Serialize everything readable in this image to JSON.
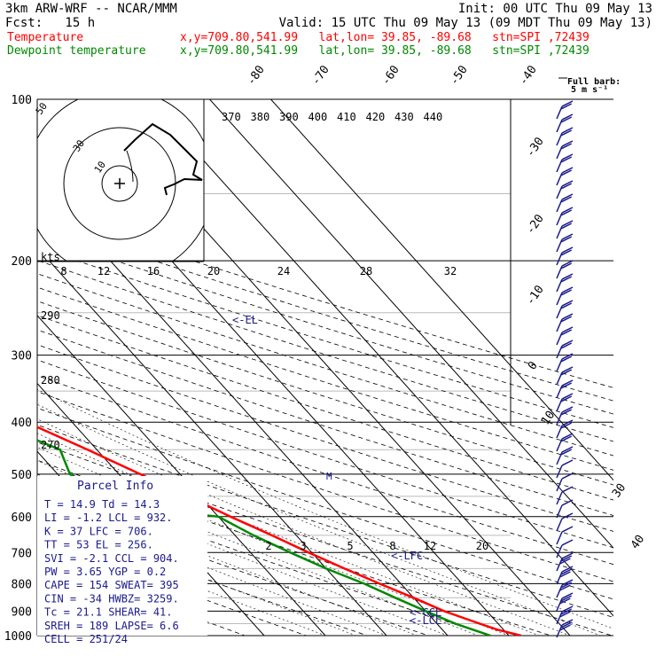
{
  "header": {
    "title": "3km ARW-WRF -- NCAR/MMM",
    "init": "Init: 00 UTC Thu 09 May 13",
    "fcst": "Fcst:   15 h",
    "valid": "Valid: 15 UTC Thu 09 May 13 (09 MDT Thu 09 May 13)",
    "temp_label": "Temperature",
    "dew_label": "Dewpoint temperature",
    "temp_info": "x,y=709.80,541.99   lat,lon= 39.85, -89.68   stn=SPI ,72439",
    "dew_info": "x,y=709.80,541.99   lat,lon= 39.85, -89.68   stn=SPI ,72439",
    "temp_color": "#ff0000",
    "dew_color": "#008800"
  },
  "barb_label": "Full barb:",
  "barb_unit": "5 m s⁻¹",
  "parcel_info": {
    "title": "Parcel Info",
    "lines": [
      "T  =   14.9 Td =  14.3",
      "LI =   -1.2 LCL =  932.",
      "K  =    37 LFC =  706.",
      "TT =    53 EL  =  256.",
      "SVI =  -2.1 CCL =  904.",
      "PW =   3.65 YGP =   0.2",
      "CAPE =  154 SWEAT=  395",
      "CIN =   -34 HWBZ= 3259.",
      "Tc =   21.1 SHEAR=  41.",
      "SREH =  189 LAPSE=  6.6",
      "CELL = 251/24"
    ],
    "color": "#1a1a8c"
  },
  "level_marks": {
    "el": "<-EL",
    "m": "M",
    "lfc": "<-LFC",
    "ccl": "<-CCL",
    "lcl": "<-LCL"
  },
  "hodograph": {
    "speed_units": "kts",
    "ring_labels": [
      "10",
      "30",
      "50"
    ]
  },
  "chart_data": {
    "type": "skew-t",
    "pressure_ticks": [
      100,
      200,
      300,
      400,
      500,
      600,
      700,
      800,
      900,
      1000
    ],
    "isotherm_labels_left_top": [
      "-80",
      "-70",
      "-60",
      "-50",
      "-40"
    ],
    "isotherm_labels_right": [
      "-30",
      "-20",
      "-10",
      "0",
      "10",
      "30",
      "40"
    ],
    "theta_e_labels": [
      "370",
      "380",
      "390",
      "400",
      "410",
      "420",
      "430",
      "440"
    ],
    "mixing_ratio_labels": [
      "8",
      "12",
      "16",
      "20",
      "24",
      "28",
      "32"
    ],
    "mixing_ratio_low_labels": [
      "2",
      "3",
      "5",
      "8",
      "12",
      "20"
    ],
    "theta_labels": [
      "290",
      "280",
      "270"
    ],
    "temperature_profile": [
      {
        "p": 1000,
        "t": 22.0
      },
      {
        "p": 975,
        "t": 19.0
      },
      {
        "p": 950,
        "t": 17.0
      },
      {
        "p": 925,
        "t": 15.0
      },
      {
        "p": 900,
        "t": 13.0
      },
      {
        "p": 850,
        "t": 10.0
      },
      {
        "p": 800,
        "t": 6.5
      },
      {
        "p": 750,
        "t": 3.0
      },
      {
        "p": 700,
        "t": -0.5
      },
      {
        "p": 650,
        "t": -4.0
      },
      {
        "p": 600,
        "t": -8.0
      },
      {
        "p": 550,
        "t": -12.0
      },
      {
        "p": 500,
        "t": -16.5
      },
      {
        "p": 450,
        "t": -21.5
      },
      {
        "p": 400,
        "t": -27.5
      },
      {
        "p": 350,
        "t": -34.5
      },
      {
        "p": 300,
        "t": -42.5
      },
      {
        "p": 250,
        "t": -52.0
      },
      {
        "p": 200,
        "t": -60.0
      },
      {
        "p": 175,
        "t": -62.0
      },
      {
        "p": 150,
        "t": -61.0
      },
      {
        "p": 125,
        "t": -57.5
      },
      {
        "p": 100,
        "t": -62.0
      }
    ],
    "dewpoint_profile": [
      {
        "p": 1000,
        "t": 17.0
      },
      {
        "p": 975,
        "t": 15.0
      },
      {
        "p": 950,
        "t": 13.0
      },
      {
        "p": 925,
        "t": 11.5
      },
      {
        "p": 900,
        "t": 10.0
      },
      {
        "p": 850,
        "t": 7.0
      },
      {
        "p": 800,
        "t": 4.0
      },
      {
        "p": 750,
        "t": 0.0
      },
      {
        "p": 700,
        "t": -3.5
      },
      {
        "p": 650,
        "t": -7.0
      },
      {
        "p": 600,
        "t": -10.0
      },
      {
        "p": 575,
        "t": -24.0
      },
      {
        "p": 550,
        "t": -24.5
      },
      {
        "p": 500,
        "t": -28.0
      },
      {
        "p": 450,
        "t": -26.0
      },
      {
        "p": 400,
        "t": -33.0
      },
      {
        "p": 350,
        "t": -40.0
      },
      {
        "p": 300,
        "t": -50.0
      },
      {
        "p": 250,
        "t": -62.0
      },
      {
        "p": 200,
        "t": -72.0
      },
      {
        "p": 175,
        "t": -73.0
      },
      {
        "p": 150,
        "t": -77.0
      },
      {
        "p": 125,
        "t": -82.0
      },
      {
        "p": 100,
        "t": -88.0
      }
    ]
  }
}
